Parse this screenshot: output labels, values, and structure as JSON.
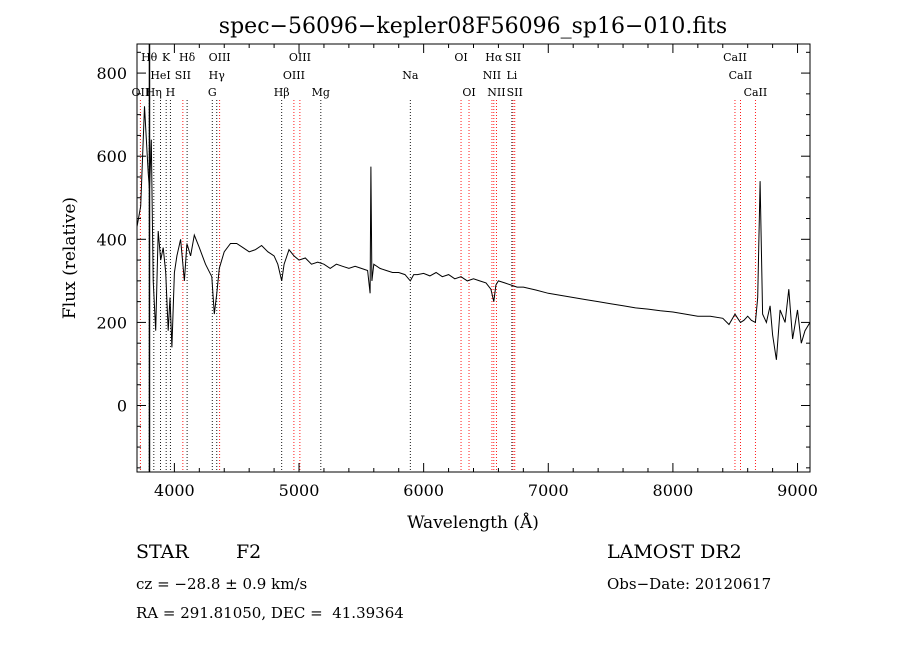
{
  "chart_data": {
    "type": "line",
    "title": "spec−56096−kepler08F56096_sp16−010.fits",
    "xlabel": "Wavelength (Å)",
    "ylabel": "Flux (relative)",
    "xlim": [
      3700,
      9100
    ],
    "ylim": [
      -160,
      870
    ],
    "xticks": [
      4000,
      5000,
      6000,
      7000,
      8000,
      9000
    ],
    "yticks": [
      0,
      200,
      400,
      600,
      800
    ],
    "grid": false,
    "series": [
      {
        "color": "#000000",
        "x": [
          3700,
          3730,
          3760,
          3790,
          3800,
          3815,
          3830,
          3850,
          3870,
          3890,
          3910,
          3930,
          3950,
          3965,
          3980,
          4000,
          4020,
          4050,
          4080,
          4100,
          4130,
          4160,
          4200,
          4250,
          4300,
          4320,
          4340,
          4360,
          4400,
          4450,
          4500,
          4550,
          4600,
          4650,
          4700,
          4750,
          4800,
          4830,
          4861,
          4880,
          4920,
          4960,
          5000,
          5050,
          5100,
          5150,
          5200,
          5250,
          5300,
          5350,
          5400,
          5450,
          5500,
          5550,
          5570,
          5577,
          5585,
          5600,
          5650,
          5700,
          5750,
          5800,
          5850,
          5893,
          5920,
          5950,
          6000,
          6050,
          6100,
          6150,
          6200,
          6250,
          6300,
          6350,
          6400,
          6450,
          6500,
          6540,
          6563,
          6580,
          6600,
          6650,
          6700,
          6750,
          6800,
          6900,
          7000,
          7100,
          7200,
          7300,
          7400,
          7500,
          7600,
          7700,
          7800,
          7900,
          8000,
          8100,
          8200,
          8300,
          8400,
          8450,
          8498,
          8520,
          8542,
          8570,
          8600,
          8630,
          8662,
          8680,
          8700,
          8720,
          8750,
          8780,
          8800,
          8830,
          8860,
          8900,
          8930,
          8960,
          9000,
          9030,
          9060,
          9100
        ],
        "values": [
          430,
          480,
          720,
          560,
          520,
          640,
          300,
          180,
          420,
          350,
          380,
          320,
          180,
          260,
          140,
          320,
          360,
          400,
          300,
          390,
          360,
          410,
          380,
          340,
          310,
          220,
          270,
          330,
          370,
          390,
          390,
          380,
          370,
          375,
          385,
          370,
          360,
          340,
          300,
          340,
          375,
          360,
          350,
          355,
          340,
          345,
          340,
          330,
          340,
          335,
          330,
          335,
          330,
          325,
          270,
          575,
          300,
          340,
          330,
          325,
          320,
          320,
          315,
          300,
          315,
          315,
          318,
          312,
          320,
          310,
          315,
          305,
          310,
          300,
          305,
          300,
          295,
          280,
          250,
          290,
          300,
          295,
          290,
          285,
          285,
          278,
          270,
          265,
          260,
          255,
          250,
          245,
          240,
          235,
          232,
          228,
          225,
          220,
          215,
          215,
          210,
          195,
          220,
          210,
          200,
          205,
          215,
          205,
          200,
          260,
          540,
          220,
          200,
          240,
          170,
          110,
          230,
          200,
          280,
          160,
          230,
          150,
          180,
          200
        ]
      }
    ],
    "line_marks": [
      {
        "label": "Hθ",
        "x": 3798,
        "row": 0
      },
      {
        "label": "K",
        "x": 3934,
        "row": 0
      },
      {
        "label": "Hδ",
        "x": 4102,
        "row": 0
      },
      {
        "label": "OIII",
        "x": 4363,
        "row": 0
      },
      {
        "label": "OIII",
        "x": 5007,
        "row": 0
      },
      {
        "label": "OI",
        "x": 6300,
        "row": 0
      },
      {
        "label": "Hα",
        "x": 6563,
        "row": 0
      },
      {
        "label": "SII",
        "x": 6717,
        "row": 0
      },
      {
        "label": "CaII",
        "x": 8498,
        "row": 0
      },
      {
        "label": "HeI",
        "x": 3889,
        "row": 1
      },
      {
        "label": "SII",
        "x": 4068,
        "row": 1
      },
      {
        "label": "Hγ",
        "x": 4340,
        "row": 1
      },
      {
        "label": "OIII",
        "x": 4959,
        "row": 1
      },
      {
        "label": "Na",
        "x": 5893,
        "row": 1
      },
      {
        "label": "NII",
        "x": 6548,
        "row": 1
      },
      {
        "label": "Li",
        "x": 6708,
        "row": 1
      },
      {
        "label": "CaII",
        "x": 8542,
        "row": 1
      },
      {
        "label": "OII",
        "x": 3727,
        "row": 2
      },
      {
        "label": "Hη",
        "x": 3835,
        "row": 2
      },
      {
        "label": "H",
        "x": 3968,
        "row": 2
      },
      {
        "label": "G",
        "x": 4304,
        "row": 2
      },
      {
        "label": "Hβ",
        "x": 4861,
        "row": 2
      },
      {
        "label": "Mg",
        "x": 5175,
        "row": 2
      },
      {
        "label": "OI",
        "x": 6364,
        "row": 2
      },
      {
        "label": "NII",
        "x": 6584,
        "row": 2
      },
      {
        "label": "SII",
        "x": 6731,
        "row": 2
      },
      {
        "label": "CaII",
        "x": 8662,
        "row": 2
      }
    ],
    "line_colors": {
      "emission": "#ff0000",
      "absorption": "#000000"
    }
  },
  "info": {
    "object_type": "STAR",
    "subclass": "F2",
    "survey": "LAMOST DR2",
    "cz": "cz = −28.8 ± 0.9 km/s",
    "obs_date": "Obs−Date: 20120617",
    "coords": "RA = 291.81050, DEC =  41.39364"
  }
}
